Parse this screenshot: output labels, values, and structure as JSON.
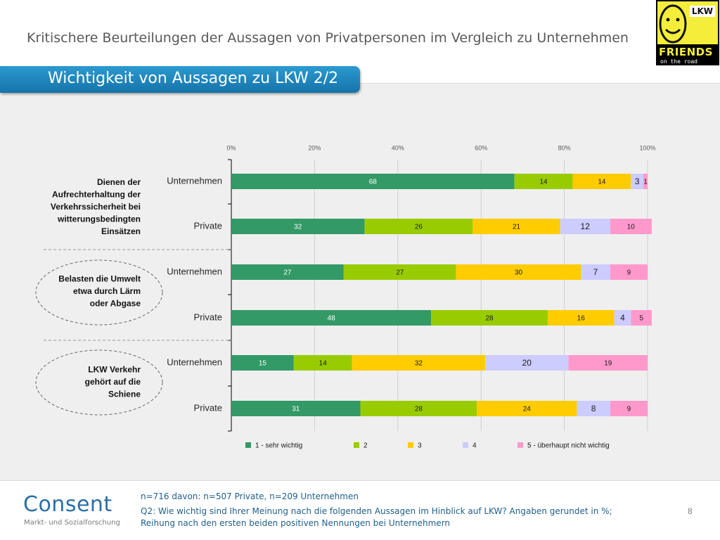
{
  "page": {
    "title": "Kritischere Beurteilungen der Aussagen von Privatpersonen im Vergleich zu Unternehmen",
    "banner": "Wichtigkeit von Aussagen zu LKW 2/2",
    "page_number": "8"
  },
  "logo": {
    "lkw": "LKW",
    "friends": "FRIENDS",
    "road": "on the road"
  },
  "consent": {
    "name": "Consent",
    "tagline": "Markt- und Sozialforschung"
  },
  "footer": {
    "line1": "n=716 davon: n=507 Private, n=209 Unternehmen",
    "line2": "Q2: Wie wichtig sind Ihrer Meinung nach die folgenden Aussagen im Hinblick auf LKW? Angaben gerundet in %;",
    "line3": "Reihung nach den ersten beiden positiven Nennungen bei Unternehmern"
  },
  "colors": {
    "s1": "#339966",
    "s2": "#99cc00",
    "s3": "#ffcc00",
    "s4": "#ccccff",
    "s5": "#ff99cc"
  },
  "chart_data": {
    "type": "bar",
    "orientation": "horizontal",
    "stacked": true,
    "xlim": [
      0,
      100
    ],
    "x_ticks": [
      "0%",
      "20%",
      "40%",
      "60%",
      "80%",
      "100%"
    ],
    "grid": true,
    "legend_position": "bottom",
    "groups": [
      {
        "label": "Dienen der Aufrechterhaltung der Verkehrssicherheit bei witterungsbedingten Einsätzen",
        "label_lines": [
          "Dienen der",
          "Aufrechterhaltung der",
          "Verkehrssicherheit bei",
          "witterungsbedingten",
          "Einsätzen"
        ],
        "ellipse": false
      },
      {
        "label": "Belasten die Umwelt etwa durch Lärm oder Abgase",
        "label_lines": [
          "Belasten die Umwelt",
          "etwa durch Lärm",
          "oder Abgase"
        ],
        "ellipse": true
      },
      {
        "label": "LKW Verkehr gehört auf die Schiene",
        "label_lines": [
          "LKW Verkehr",
          "gehört auf die",
          "Schiene"
        ],
        "ellipse": true
      }
    ],
    "categories": [
      "Unternehmen",
      "Private",
      "Unternehmen",
      "Private",
      "Unternehmen",
      "Private"
    ],
    "series": [
      {
        "name": "1 - sehr wichtig",
        "values": [
          68,
          32,
          27,
          48,
          15,
          31
        ]
      },
      {
        "name": "2",
        "values": [
          14,
          26,
          27,
          28,
          14,
          28
        ]
      },
      {
        "name": "3",
        "values": [
          14,
          21,
          30,
          16,
          32,
          24
        ]
      },
      {
        "name": "4",
        "values": [
          3,
          12,
          7,
          4,
          20,
          8
        ]
      },
      {
        "name": "5 - überhaupt nicht wichtig",
        "values": [
          1,
          10,
          9,
          5,
          19,
          9
        ]
      }
    ]
  }
}
